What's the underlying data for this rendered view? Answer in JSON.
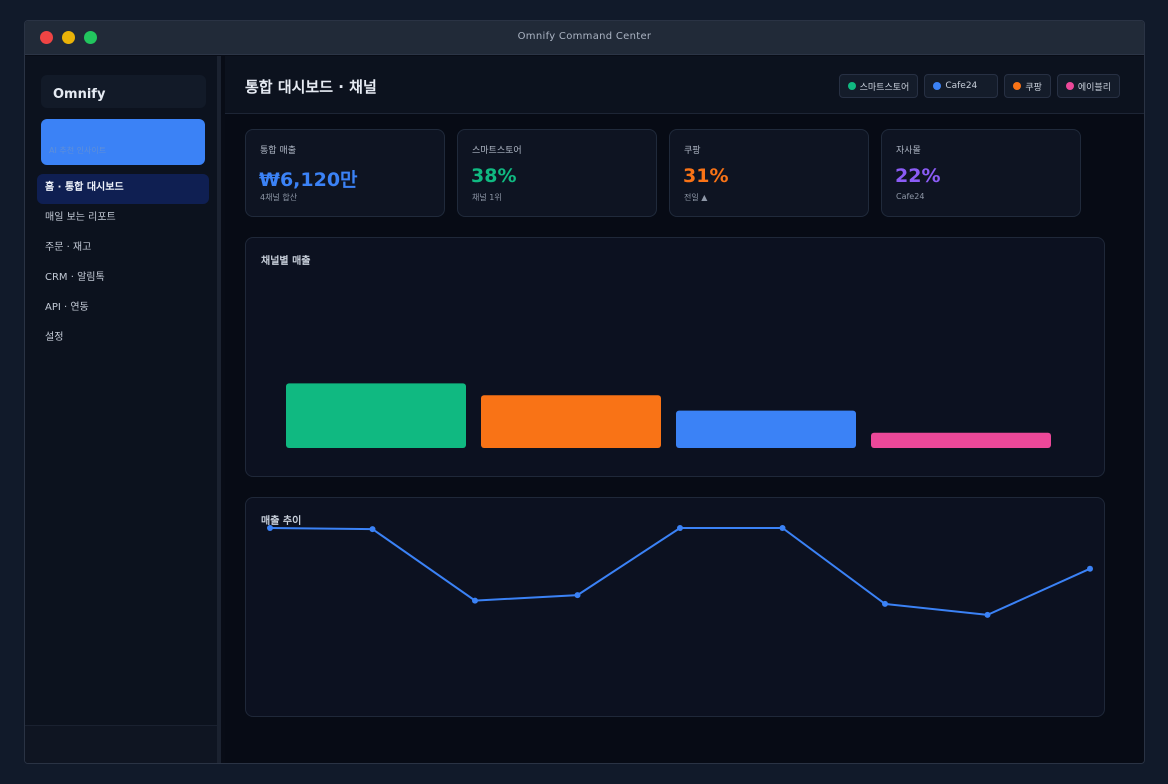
{
  "window": {
    "title": "Omnify Command Center"
  },
  "sidebar": {
    "brand": "Omnify",
    "promo_text": "AI 추천 인사이트",
    "items": [
      {
        "label": "홈 · 통합 대시보드",
        "active": true
      },
      {
        "label": "매일 보는 리포트",
        "active": false
      },
      {
        "label": "주문 · 재고",
        "active": false
      },
      {
        "label": "CRM · 알림톡",
        "active": false
      },
      {
        "label": "API · 연동",
        "active": false
      },
      {
        "label": "설정",
        "active": false
      }
    ]
  },
  "header": {
    "title": "통합 대시보드 · 채널",
    "chips": [
      {
        "label": "스마트스토어",
        "color": "#10b981"
      },
      {
        "label": "Cafe24",
        "color": "#3b82f6"
      },
      {
        "label": "쿠팡",
        "color": "#f97316"
      },
      {
        "label": "에이블리",
        "color": "#ec4899"
      }
    ]
  },
  "kpis": [
    {
      "label": "통합 매출",
      "value": "₩6,120만",
      "sub": "4채널 합산",
      "color": "#3b82f6"
    },
    {
      "label": "스마트스토어",
      "value": "38%",
      "sub": "채널 1위",
      "color": "#10b981"
    },
    {
      "label": "쿠팡",
      "value": "31%",
      "sub": "전일 ▲",
      "color": "#f97316"
    },
    {
      "label": "자사몰",
      "value": "22%",
      "sub": "Cafe24",
      "color": "#8b5cf6"
    }
  ],
  "bar_panel": {
    "title": "채널별 매출"
  },
  "line_panel": {
    "title": "매출 추이"
  },
  "chart_data": [
    {
      "type": "bar",
      "categories": [
        "스마트스토어",
        "쿠팡",
        "Cafe24",
        "에이블리"
      ],
      "values": [
        38,
        31,
        22,
        9
      ],
      "colors": [
        "#10b981",
        "#f97316",
        "#3b82f6",
        "#ec4899"
      ],
      "ylim": [
        0,
        100
      ],
      "grid": false,
      "legend": "none"
    },
    {
      "type": "line",
      "x": [
        1,
        2,
        3,
        4,
        5,
        6,
        7,
        8,
        9
      ],
      "values": [
        100,
        99,
        34,
        39,
        100,
        100,
        31,
        21,
        63
      ],
      "ylim": [
        0,
        100
      ],
      "color": "#3b82f6",
      "grid": false,
      "legend": "none"
    }
  ]
}
